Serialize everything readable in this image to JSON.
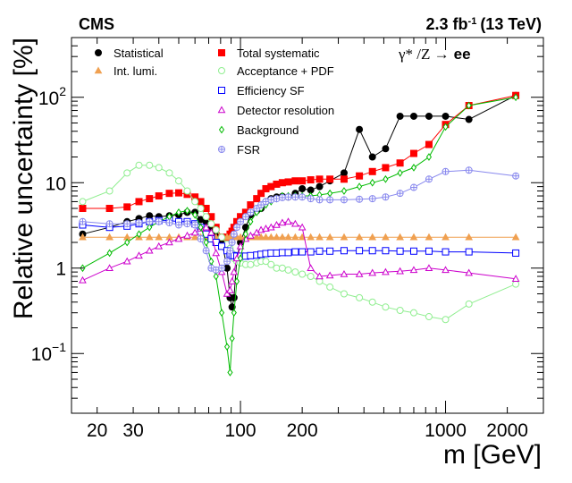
{
  "chart_data": {
    "type": "line",
    "experiment_label": "CMS",
    "lumi_label": {
      "value": "2.3 fb",
      "exponent": "-1",
      "energy": "(13 TeV)"
    },
    "process_label": {
      "math": "γ* /Z →",
      "bold": "ee"
    },
    "xlabel": "m [GeV]",
    "ylabel": "Relative uncertainty [%]",
    "xscale": "log",
    "yscale": "log",
    "xlim": [
      15,
      3000
    ],
    "ylim": [
      0.02,
      500
    ],
    "x_ticks": [
      {
        "value": 20,
        "label": "20"
      },
      {
        "value": 30,
        "label": "30"
      },
      {
        "value": 100,
        "label": "100"
      },
      {
        "value": 200,
        "label": "200"
      },
      {
        "value": 1000,
        "label": "1000"
      },
      {
        "value": 2000,
        "label": "2000"
      }
    ],
    "y_ticks": [
      {
        "value": 0.1,
        "base": "10",
        "exponent": "−1"
      },
      {
        "value": 1,
        "base": "1",
        "exponent": ""
      },
      {
        "value": 10,
        "base": "10",
        "exponent": ""
      },
      {
        "value": 100,
        "base": "10",
        "exponent": "2"
      }
    ],
    "x": [
      17,
      23,
      28,
      32,
      36,
      40,
      45,
      50,
      55,
      60,
      64,
      68,
      72,
      76,
      81,
      86,
      89,
      91,
      93,
      96,
      100,
      106,
      112,
      120,
      126,
      133,
      141,
      150,
      160,
      171,
      185,
      200,
      220,
      243,
      273,
      320,
      380,
      440,
      510,
      600,
      700,
      830,
      1000,
      1300,
      2200
    ],
    "series": [
      {
        "name": "Statistical",
        "color": "#000000",
        "marker": "circle",
        "filled": true,
        "values": [
          2.5,
          3.0,
          3.5,
          3.8,
          4.1,
          4.0,
          4.1,
          4.2,
          4.5,
          4.5,
          3.7,
          3.5,
          2.9,
          2.5,
          2.1,
          1.0,
          0.45,
          0.35,
          0.45,
          1.3,
          2.0,
          3.0,
          4.2,
          4.7,
          5.0,
          6.0,
          6.5,
          6.8,
          6.9,
          6.8,
          7.5,
          8.5,
          8.2,
          9.0,
          10.5,
          13.0,
          42,
          20,
          25,
          60,
          60,
          60,
          60,
          55,
          105
        ]
      },
      {
        "name": "Total systematic",
        "color": "#ff0000",
        "marker": "square",
        "filled": true,
        "values": [
          5.0,
          5.0,
          5.2,
          6.0,
          6.5,
          7.0,
          7.5,
          7.6,
          7.3,
          6.8,
          6.0,
          5.0,
          4.0,
          3.0,
          2.3,
          2.3,
          2.5,
          2.7,
          3.0,
          3.5,
          4.0,
          4.5,
          5.5,
          6.5,
          7.5,
          8.5,
          9.0,
          9.6,
          10.0,
          10.2,
          10.5,
          10.5,
          10.8,
          11.0,
          11.0,
          11.0,
          12.0,
          13.5,
          15.0,
          17.0,
          22.0,
          28.0,
          48,
          80,
          105
        ]
      },
      {
        "name": "Int. lumi.",
        "color": "#f0a050",
        "marker": "triangle-up",
        "filled": true,
        "values": [
          2.3,
          2.3,
          2.3,
          2.3,
          2.3,
          2.3,
          2.3,
          2.3,
          2.3,
          2.3,
          2.3,
          2.3,
          2.3,
          2.3,
          2.3,
          2.3,
          2.3,
          2.3,
          2.3,
          2.3,
          2.3,
          2.3,
          2.3,
          2.3,
          2.3,
          2.3,
          2.3,
          2.3,
          2.3,
          2.3,
          2.3,
          2.3,
          2.3,
          2.3,
          2.3,
          2.3,
          2.3,
          2.3,
          2.3,
          2.3,
          2.3,
          2.3,
          2.3,
          2.3,
          2.3
        ]
      },
      {
        "name": "Acceptance + PDF",
        "color": "#90ee90",
        "marker": "circle",
        "filled": false,
        "values": [
          6.0,
          8.0,
          13.0,
          16.0,
          16.0,
          15.0,
          13.0,
          10.5,
          8.0,
          6.0,
          5.0,
          4.0,
          3.3,
          2.8,
          2.3,
          1.9,
          1.7,
          1.5,
          1.3,
          1.2,
          1.15,
          1.1,
          1.1,
          1.15,
          1.2,
          1.2,
          1.1,
          1.0,
          1.0,
          0.95,
          0.9,
          0.85,
          0.8,
          0.7,
          0.6,
          0.5,
          0.45,
          0.4,
          0.35,
          0.32,
          0.3,
          0.27,
          0.25,
          0.38,
          0.65
        ]
      },
      {
        "name": "Efficiency SF",
        "color": "#0000ff",
        "marker": "square",
        "filled": false,
        "values": [
          3.2,
          3.0,
          3.1,
          3.3,
          3.5,
          3.6,
          3.6,
          3.5,
          3.5,
          3.3,
          3.0,
          2.5,
          2.2,
          2.0,
          1.8,
          1.6,
          1.45,
          1.4,
          1.4,
          1.38,
          1.38,
          1.38,
          1.4,
          1.42,
          1.45,
          1.48,
          1.5,
          1.5,
          1.52,
          1.52,
          1.55,
          1.55,
          1.55,
          1.58,
          1.58,
          1.6,
          1.6,
          1.6,
          1.6,
          1.58,
          1.58,
          1.58,
          1.55,
          1.55,
          1.5
        ]
      },
      {
        "name": "Detector resolution",
        "color": "#cc00cc",
        "marker": "triangle-up",
        "filled": false,
        "values": [
          0.72,
          1.0,
          1.2,
          1.4,
          1.6,
          1.8,
          2.0,
          2.2,
          2.4,
          2.6,
          2.9,
          3.0,
          2.6,
          1.5,
          0.9,
          0.5,
          0.55,
          0.7,
          0.9,
          1.3,
          1.8,
          2.2,
          2.4,
          2.6,
          2.8,
          2.9,
          3.0,
          3.2,
          3.4,
          3.5,
          3.3,
          3.0,
          1.0,
          0.8,
          0.82,
          0.85,
          0.85,
          0.88,
          0.9,
          0.92,
          0.95,
          1.0,
          0.95,
          0.88,
          0.75
        ]
      },
      {
        "name": "Background",
        "color": "#00bb00",
        "marker": "diamond",
        "filled": false,
        "values": [
          1.0,
          1.5,
          2.0,
          2.5,
          3.0,
          3.5,
          4.0,
          4.5,
          4.7,
          4.2,
          3.0,
          2.0,
          1.2,
          0.8,
          0.3,
          0.12,
          0.06,
          0.15,
          0.3,
          0.7,
          1.3,
          2.5,
          3.5,
          4.5,
          5.0,
          5.5,
          6.0,
          6.5,
          7.0,
          7.0,
          7.0,
          7.0,
          7.0,
          7.2,
          7.5,
          8.0,
          9.0,
          10.0,
          11.0,
          13.0,
          15.0,
          20.0,
          45,
          80,
          100
        ]
      },
      {
        "name": "FSR",
        "color": "#8888ee",
        "marker": "cross-circle",
        "filled": false,
        "values": [
          3.5,
          3.3,
          3.3,
          3.4,
          3.5,
          3.5,
          3.4,
          3.2,
          3.3,
          3.2,
          2.2,
          1.6,
          1.0,
          0.95,
          1.0,
          1.2,
          1.6,
          2.0,
          2.5,
          3.0,
          3.5,
          4.0,
          4.5,
          5.0,
          5.5,
          6.0,
          6.3,
          6.5,
          6.7,
          6.8,
          6.8,
          6.8,
          6.5,
          6.3,
          6.3,
          6.3,
          6.4,
          6.5,
          6.8,
          7.5,
          8.8,
          11.0,
          13.5,
          14.0,
          12.0
        ]
      }
    ],
    "legend": [
      {
        "series": 0,
        "label": "Statistical"
      },
      {
        "series": 1,
        "label": "Total systematic"
      },
      {
        "series": 2,
        "label": "Int. lumi."
      },
      {
        "series": 3,
        "label": "Acceptance + PDF"
      },
      {
        "series": 4,
        "label": "Efficiency SF"
      },
      {
        "series": 5,
        "label": "Detector resolution"
      },
      {
        "series": 6,
        "label": "Background"
      },
      {
        "series": 7,
        "label": "FSR"
      }
    ]
  }
}
